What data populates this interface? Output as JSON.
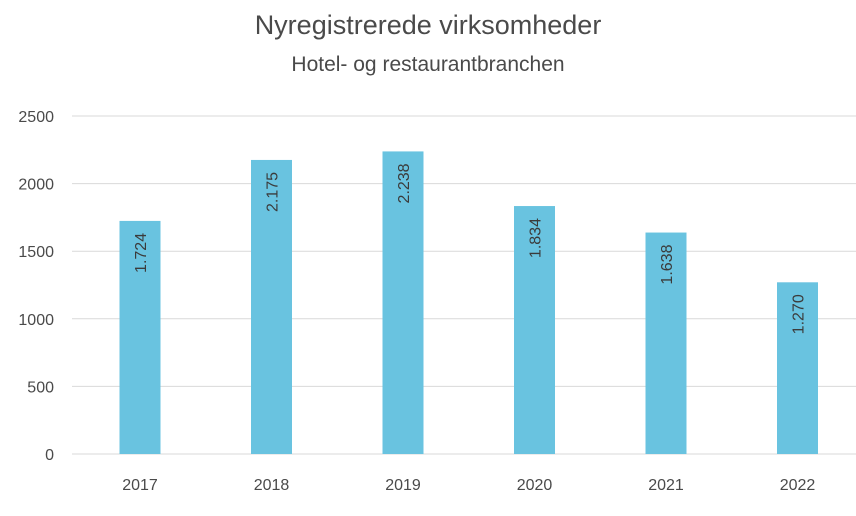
{
  "chart_data": {
    "type": "bar",
    "title": "Nyregistrerede virksomheder",
    "subtitle": "Hotel- og restaurantbranchen",
    "categories": [
      "2017",
      "2018",
      "2019",
      "2020",
      "2021",
      "2022"
    ],
    "values": [
      1724,
      2175,
      2238,
      1834,
      1638,
      1270
    ],
    "data_labels": [
      "1.724",
      "2.175",
      "2.238",
      "1.834",
      "1.638",
      "1.270"
    ],
    "ylim": [
      0,
      2500
    ],
    "yticks": [
      0,
      500,
      1000,
      1500,
      2000,
      2500
    ],
    "grid": true,
    "legend": "none",
    "bar_color": "#69c3e0",
    "grid_color": "#d9d9d9",
    "text_color": "#4a4a4a"
  }
}
